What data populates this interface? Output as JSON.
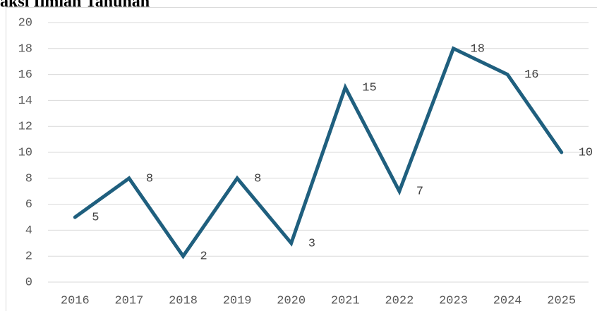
{
  "chart_data": {
    "type": "line",
    "title": "aksi Ilmiah Tahunan",
    "categories": [
      "2016",
      "2017",
      "2018",
      "2019",
      "2020",
      "2021",
      "2022",
      "2023",
      "2024",
      "2025"
    ],
    "values": [
      5,
      8,
      2,
      8,
      3,
      15,
      7,
      18,
      16,
      10
    ],
    "color": "#1f5f7e",
    "ylim": [
      0,
      20
    ],
    "yticks": [
      0,
      2,
      4,
      6,
      8,
      10,
      12,
      14,
      16,
      18,
      20
    ],
    "grid": true,
    "data_labels": true
  }
}
